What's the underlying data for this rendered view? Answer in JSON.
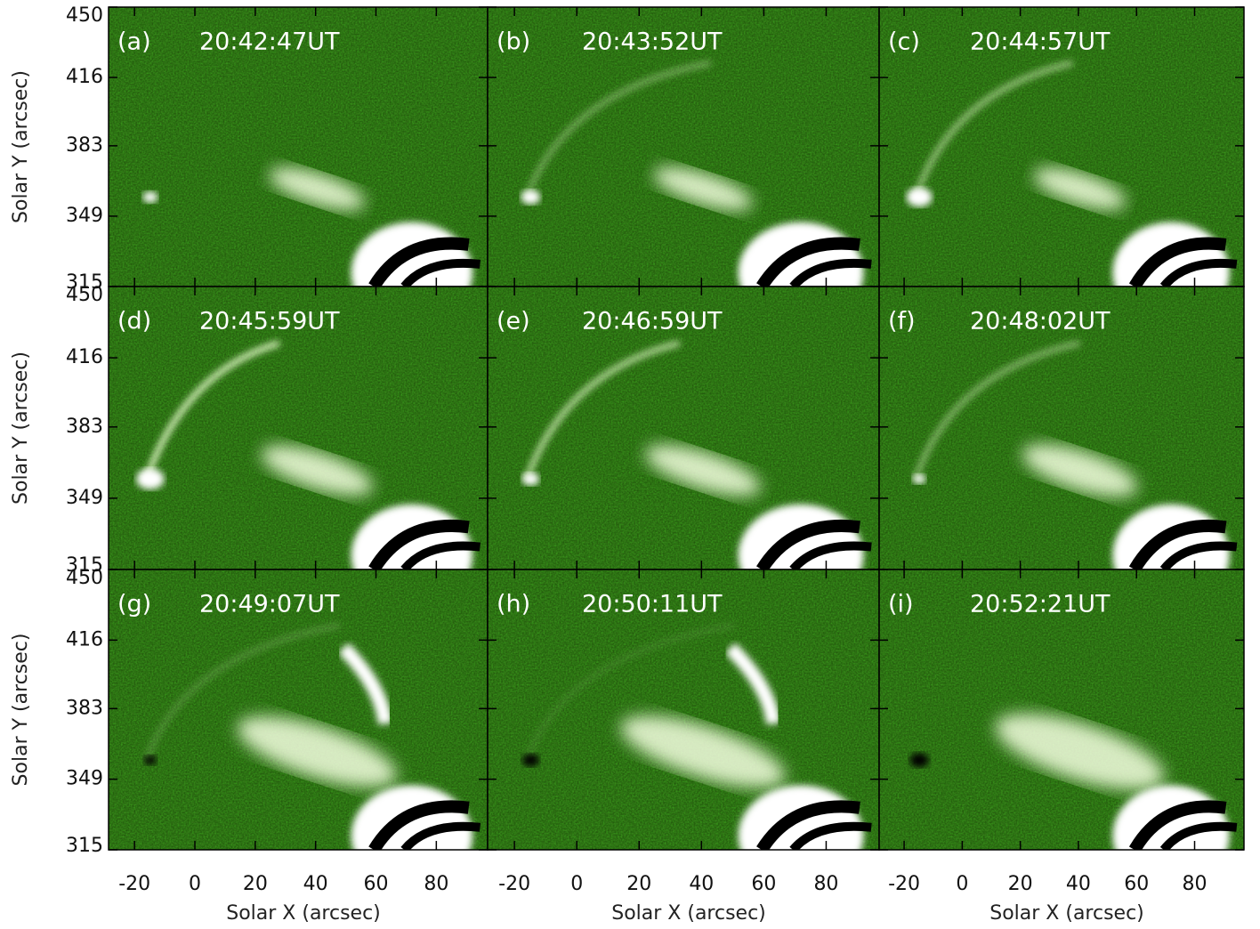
{
  "chart_data": [
    {
      "type": "image",
      "panel_label": "(a)",
      "title": "20:42:47UT",
      "xlim": [
        -28.6,
        97
      ],
      "ylim": [
        315,
        450
      ],
      "yticks": [
        315,
        349,
        383,
        416,
        450
      ],
      "ylabel": "Solar Y (arcsec)"
    },
    {
      "type": "image",
      "panel_label": "(b)",
      "title": "20:43:52UT",
      "xlim": [
        -28.6,
        97
      ],
      "ylim": [
        315,
        450
      ]
    },
    {
      "type": "image",
      "panel_label": "(c)",
      "title": "20:44:57UT",
      "xlim": [
        -28.6,
        97
      ],
      "ylim": [
        315,
        450
      ]
    },
    {
      "type": "image",
      "panel_label": "(d)",
      "title": "20:45:59UT",
      "xlim": [
        -28.6,
        97
      ],
      "ylim": [
        315,
        450
      ],
      "yticks": [
        315,
        349,
        383,
        416,
        450
      ],
      "ylabel": "Solar Y (arcsec)"
    },
    {
      "type": "image",
      "panel_label": "(e)",
      "title": "20:46:59UT",
      "xlim": [
        -28.6,
        97
      ],
      "ylim": [
        315,
        450
      ]
    },
    {
      "type": "image",
      "panel_label": "(f)",
      "title": "20:48:02UT",
      "xlim": [
        -28.6,
        97
      ],
      "ylim": [
        315,
        450
      ]
    },
    {
      "type": "image",
      "panel_label": "(g)",
      "title": "20:49:07UT",
      "xlim": [
        -28.6,
        97
      ],
      "ylim": [
        315,
        450
      ],
      "yticks": [
        315,
        349,
        383,
        416,
        450
      ],
      "ylabel": "Solar Y (arcsec)",
      "xticks": [
        -20,
        0,
        20,
        40,
        60,
        80
      ],
      "xlabel": "Solar X (arcsec)"
    },
    {
      "type": "image",
      "panel_label": "(h)",
      "title": "20:50:11UT",
      "xlim": [
        -28.6,
        97
      ],
      "ylim": [
        315,
        450
      ],
      "xticks": [
        -20,
        0,
        20,
        40,
        60,
        80
      ],
      "xlabel": "Solar X (arcsec)"
    },
    {
      "type": "image",
      "panel_label": "(i)",
      "title": "20:52:21UT",
      "xlim": [
        -28.6,
        97
      ],
      "ylim": [
        315,
        450
      ],
      "xticks": [
        -20,
        0,
        20,
        40,
        60,
        80
      ],
      "xlabel": "Solar X (arcsec)"
    }
  ]
}
